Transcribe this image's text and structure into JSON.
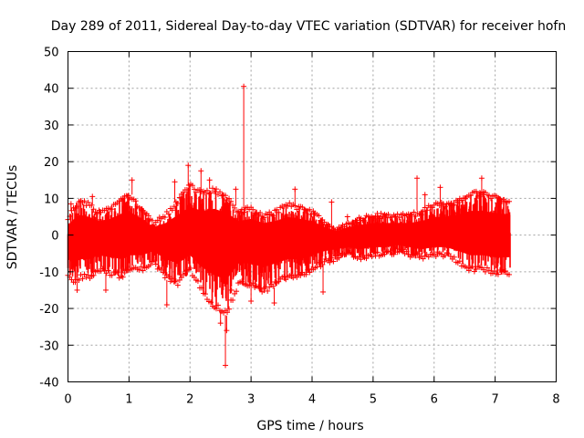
{
  "chart_data": {
    "type": "scatter",
    "title": "Day 289 of 2011, Sidereal Day-to-day VTEC variation (SDTVAR) for receiver hofn",
    "xlabel": "GPS time / hours",
    "ylabel": "SDTVAR / TECUs",
    "xlim": [
      0,
      8
    ],
    "ylim": [
      -40,
      50
    ],
    "x_ticks": [
      "0",
      "1",
      "2",
      "3",
      "4",
      "5",
      "6",
      "7",
      "8"
    ],
    "y_ticks": [
      "-40",
      "-30",
      "-20",
      "-10",
      "0",
      "10",
      "20",
      "30",
      "40",
      "50"
    ],
    "grid": true,
    "marker": "+",
    "color": "#ff0000",
    "series": [
      {
        "name": "SDTVAR",
        "envelope": {
          "x": [
            0.0,
            0.1,
            0.2,
            0.35,
            0.5,
            0.7,
            0.9,
            1.0,
            1.2,
            1.4,
            1.6,
            1.8,
            2.0,
            2.2,
            2.4,
            2.6,
            2.8,
            3.0,
            3.2,
            3.4,
            3.6,
            3.8,
            4.0,
            4.2,
            4.4,
            4.6,
            4.8,
            5.0,
            5.2,
            5.4,
            5.6,
            5.8,
            6.0,
            6.2,
            6.4,
            6.6,
            6.8,
            7.0,
            7.25
          ],
          "upper": [
            5,
            8,
            10,
            9,
            7,
            8,
            11,
            12,
            8,
            4,
            6,
            10,
            14,
            12,
            13,
            11,
            7,
            8,
            6,
            7,
            9,
            8,
            7,
            4,
            2,
            4,
            5,
            6,
            6,
            6,
            6,
            7,
            9,
            9,
            10,
            12,
            12,
            11,
            10
          ],
          "lower": [
            -12,
            -14,
            -12,
            -12,
            -10,
            -11,
            -12,
            -10,
            -10,
            -8,
            -12,
            -14,
            -10,
            -16,
            -20,
            -22,
            -14,
            -14,
            -16,
            -14,
            -12,
            -12,
            -10,
            -8,
            -7,
            -6,
            -7,
            -6,
            -6,
            -5,
            -6,
            -7,
            -6,
            -6,
            -8,
            -10,
            -10,
            -11,
            -11
          ]
        },
        "outliers": [
          {
            "x": 2.88,
            "y": 40.5
          },
          {
            "x": 2.58,
            "y": -35.5
          },
          {
            "x": 5.72,
            "y": 15.5
          },
          {
            "x": 1.05,
            "y": 15
          },
          {
            "x": 1.97,
            "y": 19
          },
          {
            "x": 2.18,
            "y": 17.5
          },
          {
            "x": 2.6,
            "y": -26
          },
          {
            "x": 2.5,
            "y": -24
          },
          {
            "x": 1.62,
            "y": -19
          },
          {
            "x": 4.18,
            "y": -15.5
          },
          {
            "x": 0.15,
            "y": -15
          },
          {
            "x": 0.62,
            "y": -15
          },
          {
            "x": 3.38,
            "y": -18.5
          },
          {
            "x": 6.78,
            "y": 15.5
          },
          {
            "x": 2.75,
            "y": 12.5
          },
          {
            "x": 3.72,
            "y": 12.5
          },
          {
            "x": 0.05,
            "y": 8.5
          },
          {
            "x": 4.32,
            "y": 9
          },
          {
            "x": 5.85,
            "y": 11
          },
          {
            "x": 2.32,
            "y": 15
          },
          {
            "x": 1.75,
            "y": 14.5
          },
          {
            "x": 6.1,
            "y": 13
          },
          {
            "x": 3.0,
            "y": -18
          },
          {
            "x": 2.68,
            "y": -15
          },
          {
            "x": 0.4,
            "y": 10.5
          },
          {
            "x": 4.58,
            "y": 5
          }
        ]
      }
    ]
  }
}
